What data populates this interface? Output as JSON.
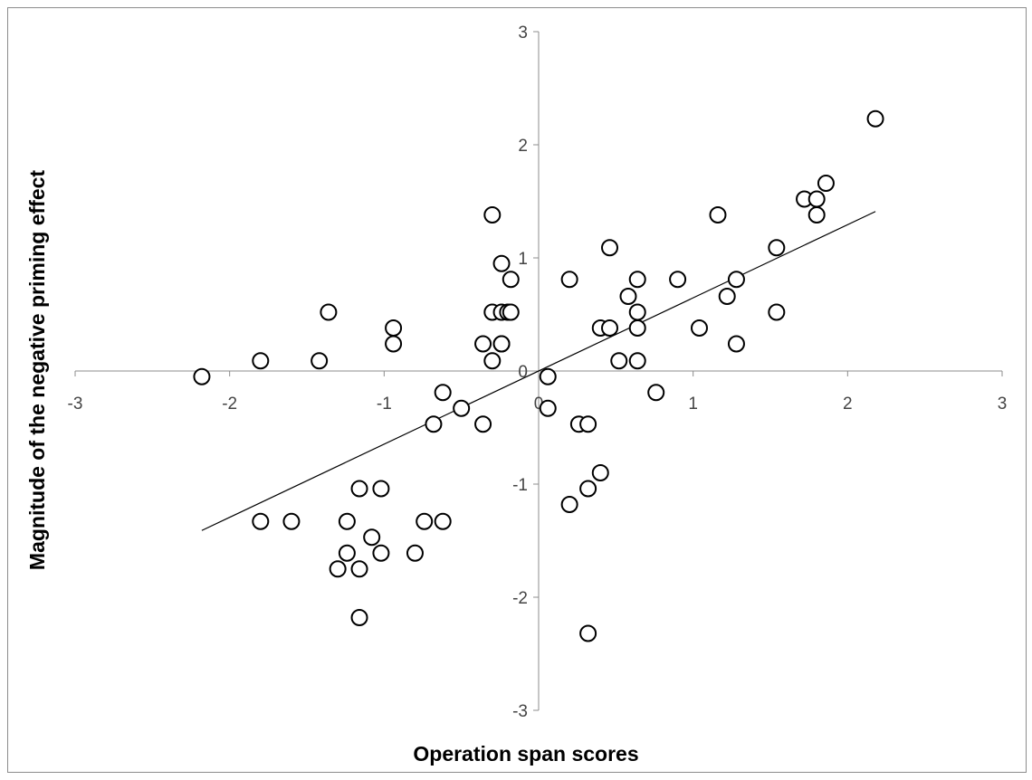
{
  "chart_data": {
    "type": "scatter",
    "title": "",
    "xlabel": "Operation span scores",
    "ylabel": "Magnitude of the negative priming effect",
    "xlim": [
      -3,
      3
    ],
    "ylim": [
      -3,
      3
    ],
    "x_ticks": [
      "-3",
      "-2",
      "-1",
      "0",
      "1",
      "2",
      "3"
    ],
    "y_ticks": [
      "3",
      "2",
      "1",
      "0",
      "-1",
      "-2",
      "-3"
    ],
    "grid": false,
    "legend": "none",
    "marker": "open-circle",
    "series": [
      {
        "points": [
          [
            -2.18,
            -0.05
          ],
          [
            -1.8,
            0.09
          ],
          [
            -1.42,
            0.09
          ],
          [
            -1.36,
            0.52
          ],
          [
            -0.94,
            0.38
          ],
          [
            -0.94,
            0.24
          ],
          [
            -1.8,
            -1.33
          ],
          [
            -1.6,
            -1.33
          ],
          [
            -1.24,
            -1.33
          ],
          [
            -1.16,
            -1.04
          ],
          [
            -1.02,
            -1.04
          ],
          [
            -1.08,
            -1.47
          ],
          [
            -1.24,
            -1.61
          ],
          [
            -1.02,
            -1.61
          ],
          [
            -1.3,
            -1.75
          ],
          [
            -1.16,
            -1.75
          ],
          [
            -1.16,
            -2.18
          ],
          [
            -0.8,
            -1.61
          ],
          [
            -0.74,
            -1.33
          ],
          [
            -0.62,
            -1.33
          ],
          [
            -0.68,
            -0.47
          ],
          [
            -0.62,
            -0.19
          ],
          [
            -0.5,
            -0.33
          ],
          [
            -0.36,
            -0.47
          ],
          [
            -0.36,
            0.24
          ],
          [
            -0.3,
            0.09
          ],
          [
            -0.3,
            0.52
          ],
          [
            -0.3,
            1.38
          ],
          [
            -0.24,
            0.24
          ],
          [
            -0.24,
            0.52
          ],
          [
            -0.24,
            0.95
          ],
          [
            -0.2,
            0.52
          ],
          [
            -0.18,
            0.81
          ],
          [
            -0.18,
            0.52
          ],
          [
            -0.24,
            0.24
          ],
          [
            0.06,
            -0.05
          ],
          [
            0.06,
            -0.33
          ],
          [
            0.2,
            0.81
          ],
          [
            0.2,
            -1.18
          ],
          [
            0.26,
            -0.47
          ],
          [
            0.32,
            -0.47
          ],
          [
            0.32,
            -1.04
          ],
          [
            0.32,
            -2.32
          ],
          [
            0.4,
            -0.9
          ],
          [
            0.4,
            0.38
          ],
          [
            0.46,
            0.38
          ],
          [
            0.46,
            1.09
          ],
          [
            0.52,
            0.09
          ],
          [
            0.58,
            0.66
          ],
          [
            0.64,
            0.81
          ],
          [
            0.64,
            0.52
          ],
          [
            0.64,
            0.38
          ],
          [
            0.64,
            0.09
          ],
          [
            0.76,
            -0.19
          ],
          [
            0.9,
            0.81
          ],
          [
            1.04,
            0.38
          ],
          [
            1.16,
            1.38
          ],
          [
            1.22,
            0.66
          ],
          [
            1.28,
            0.81
          ],
          [
            1.28,
            0.24
          ],
          [
            1.54,
            1.09
          ],
          [
            1.54,
            0.52
          ],
          [
            1.72,
            1.52
          ],
          [
            1.8,
            1.52
          ],
          [
            1.8,
            1.38
          ],
          [
            1.86,
            1.66
          ],
          [
            2.18,
            2.23
          ]
        ]
      }
    ],
    "trendline": {
      "x": [
        -2.18,
        2.18
      ],
      "y": [
        -1.41,
        1.41
      ]
    }
  }
}
